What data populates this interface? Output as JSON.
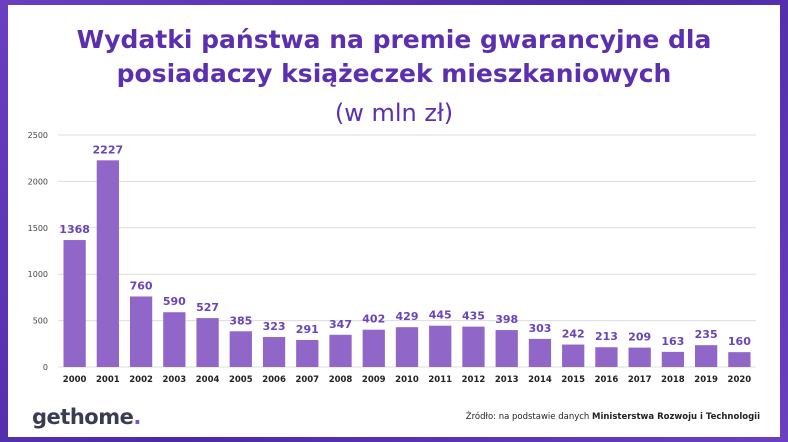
{
  "title_line1": "Wydatki państwa na premie gwarancyjne dla",
  "title_line2": "posiadaczy książeczek mieszkaniowych",
  "subtitle": "(w mln zł)",
  "logo_text": "gethome",
  "logo_dot": ".",
  "source_prefix": "Źródło: na podstawie danych ",
  "source_bold": "Ministerstwa Rozwoju i Technologii",
  "colors": {
    "bar": "#9166c9",
    "label": "#6a44b8",
    "title": "#5b2fb0",
    "frame": "#5a36b0"
  },
  "chart_data": {
    "type": "bar",
    "categories": [
      "2000",
      "2001",
      "2002",
      "2003",
      "2004",
      "2005",
      "2006",
      "2007",
      "2008",
      "2009",
      "2010",
      "2011",
      "2012",
      "2013",
      "2014",
      "2015",
      "2016",
      "2017",
      "2018",
      "2019",
      "2020"
    ],
    "values": [
      1368,
      2227,
      760,
      590,
      527,
      385,
      323,
      291,
      347,
      402,
      429,
      445,
      435,
      398,
      303,
      242,
      213,
      209,
      163,
      235,
      160
    ],
    "ylim": [
      0,
      2500
    ],
    "yticks": [
      0,
      500,
      1000,
      1500,
      2000,
      2500
    ],
    "grid": true,
    "xlabel": "",
    "ylabel": ""
  }
}
